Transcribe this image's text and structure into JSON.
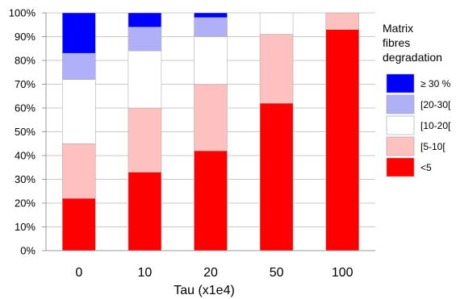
{
  "chart_data": {
    "type": "bar",
    "stacked": true,
    "percent": true,
    "categories": [
      "0",
      "10",
      "20",
      "50",
      "100"
    ],
    "series": [
      {
        "name": "<5",
        "color": "#ff0000",
        "values": [
          22,
          33,
          42,
          62,
          93
        ]
      },
      {
        "name": "[5-10[",
        "color": "#ffc0c0",
        "values": [
          23,
          27,
          28,
          29,
          7
        ]
      },
      {
        "name": "[10-20[",
        "color": "#ffffff",
        "values": [
          27,
          24,
          20,
          9,
          0
        ]
      },
      {
        "name": "[20-30[",
        "color": "#b0b0f8",
        "values": [
          11,
          10,
          8,
          0,
          0
        ]
      },
      {
        "name": "≥ 30 %",
        "color": "#0000ff",
        "values": [
          17,
          6,
          2,
          0,
          0
        ]
      }
    ],
    "ylim": [
      0,
      100
    ],
    "yticks": [
      "0%",
      "10%",
      "20%",
      "30%",
      "40%",
      "50%",
      "60%",
      "70%",
      "80%",
      "90%",
      "100%"
    ],
    "xlabel": "Tau (x1e4)",
    "ylabel": "",
    "grid": true,
    "legend": {
      "title_lines": [
        "Matrix",
        "fibres",
        "degradation"
      ],
      "placement": "right",
      "order": [
        "≥ 30 %",
        "[20-30[",
        "[10-20[",
        "[5-10[",
        "<5"
      ]
    }
  }
}
